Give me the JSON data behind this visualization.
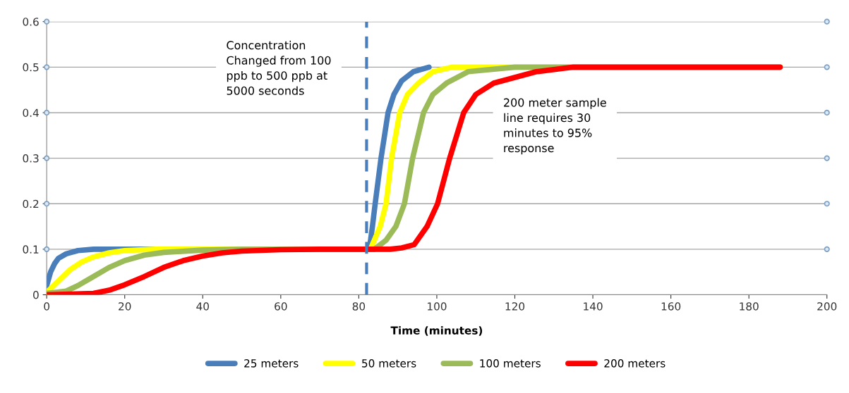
{
  "chart_data": {
    "type": "line",
    "xlabel": "Time (minutes)",
    "xlim": [
      0,
      200
    ],
    "xticks": [
      0,
      20,
      40,
      60,
      80,
      100,
      120,
      140,
      160,
      180,
      200
    ],
    "ylim": [
      0,
      0.6
    ],
    "yticks": [
      0,
      0.1,
      0.2,
      0.3,
      0.4,
      0.5,
      0.6
    ],
    "grid": "y",
    "legend": "bottom",
    "line_style": "solid",
    "marker": "none",
    "series": [
      {
        "name": "25 meters",
        "color": "#4a7ebb",
        "x": [
          0,
          1,
          2,
          3,
          5,
          8,
          12,
          82,
          82.7,
          83.5,
          84.2,
          85.7,
          87.5,
          89,
          91,
          94,
          98
        ],
        "values": [
          0.02,
          0.05,
          0.068,
          0.08,
          0.09,
          0.097,
          0.1,
          0.1,
          0.1,
          0.15,
          0.2,
          0.3,
          0.4,
          0.44,
          0.47,
          0.49,
          0.5
        ]
      },
      {
        "name": "50 meters",
        "color": "#ffff00",
        "x": [
          0,
          3,
          6,
          9,
          12,
          16,
          20,
          28,
          82,
          83,
          85.5,
          87,
          88.4,
          90.5,
          92.5,
          95.3,
          99,
          104,
          188
        ],
        "values": [
          0.005,
          0.03,
          0.055,
          0.072,
          0.083,
          0.092,
          0.097,
          0.1,
          0.1,
          0.1,
          0.15,
          0.2,
          0.3,
          0.4,
          0.44,
          0.465,
          0.49,
          0.5,
          0.5
        ]
      },
      {
        "name": "100 meters",
        "color": "#9bbb59",
        "x": [
          0,
          5,
          8,
          12,
          16,
          20,
          25,
          30,
          40,
          50,
          84,
          87,
          89.5,
          91.7,
          93.8,
          96.6,
          99,
          102.5,
          108,
          120,
          188
        ],
        "values": [
          0.003,
          0.008,
          0.02,
          0.04,
          0.06,
          0.075,
          0.087,
          0.093,
          0.098,
          0.1,
          0.1,
          0.12,
          0.15,
          0.2,
          0.3,
          0.4,
          0.44,
          0.465,
          0.49,
          0.5,
          0.5
        ]
      },
      {
        "name": "200 meters",
        "color": "#ff0000",
        "x": [
          0,
          12,
          16,
          20,
          25,
          30,
          35,
          40,
          45,
          50,
          60,
          70,
          88,
          91,
          94.2,
          97.5,
          100.2,
          103.3,
          106.9,
          110,
          114.6,
          125.5,
          135,
          188
        ],
        "values": [
          0,
          0.003,
          0.01,
          0.022,
          0.04,
          0.06,
          0.075,
          0.085,
          0.092,
          0.096,
          0.099,
          0.1,
          0.1,
          0.103,
          0.11,
          0.15,
          0.2,
          0.3,
          0.4,
          0.44,
          0.465,
          0.49,
          0.5,
          0.5
        ]
      },
      {
        "type": "scatter",
        "color": "#7f9fc0",
        "marker": "circle",
        "x": [
          0,
          0,
          0,
          0,
          0,
          0,
          200,
          200,
          200,
          200,
          200,
          200
        ],
        "values": [
          0.1,
          0.2,
          0.3,
          0.4,
          0.5,
          0.6,
          0.1,
          0.2,
          0.3,
          0.4,
          0.5,
          0.6
        ]
      }
    ],
    "ref_lines": [
      {
        "axis": "x",
        "value": 82,
        "color": "#4a7ebb",
        "line_style": "dashed"
      }
    ],
    "annotations": [
      "Concentration\nChanged from 100\nppb to 500 ppb at\n5000 seconds",
      "200 meter sample\nline requires 30\nminutes to 95%\nresponse"
    ]
  }
}
